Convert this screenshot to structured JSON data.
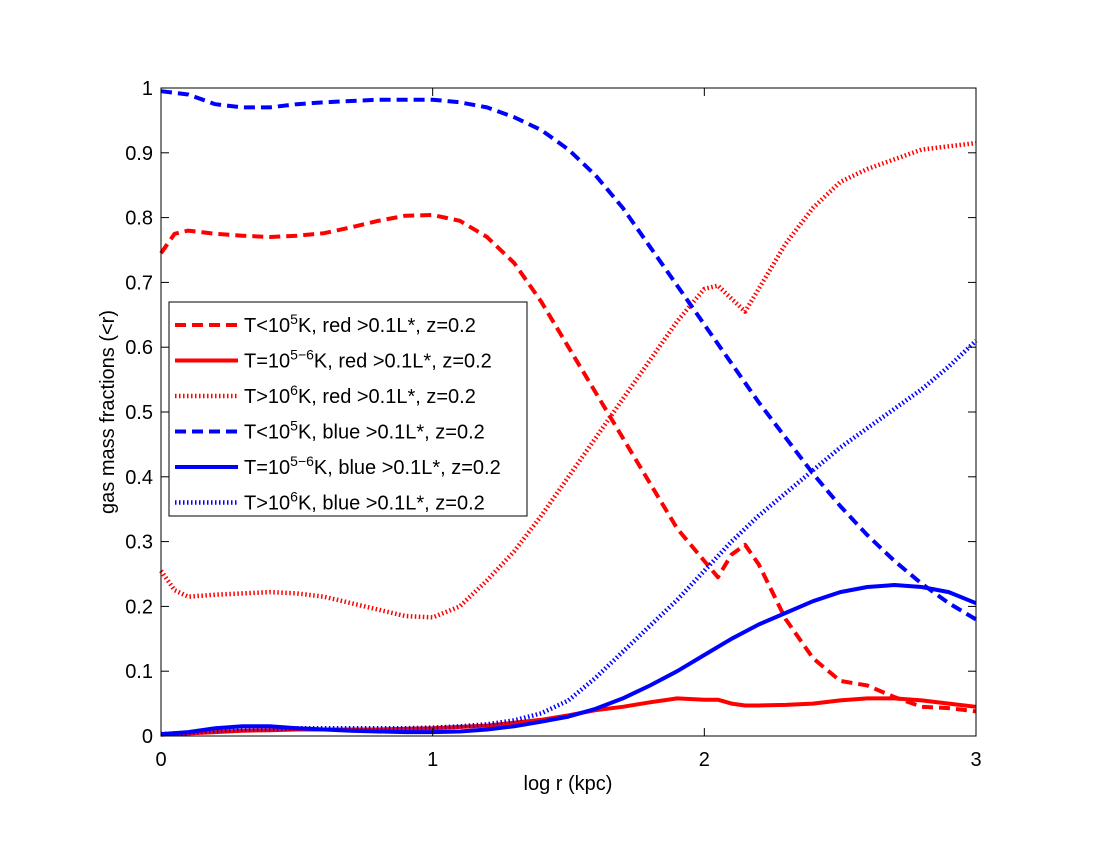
{
  "chart_data": {
    "type": "line",
    "title": "",
    "xlabel": "log r (kpc)",
    "ylabel": "gas mass fractions (<r)",
    "xlim": [
      0,
      3
    ],
    "ylim": [
      0,
      1
    ],
    "xticks": [
      0,
      1,
      2,
      3
    ],
    "xtick_labels": [
      "0",
      "1",
      "2",
      "3"
    ],
    "yticks": [
      0,
      0.1,
      0.2,
      0.3,
      0.4,
      0.5,
      0.6,
      0.7,
      0.8,
      0.9,
      1
    ],
    "ytick_labels": [
      "0",
      "0.1",
      "0.2",
      "0.3",
      "0.4",
      "0.5",
      "0.6",
      "0.7",
      "0.8",
      "0.9",
      "1"
    ],
    "grid": false,
    "legend_position": "center-left",
    "series": [
      {
        "name": "T<10^5K, red >0.1L*, z=0.2",
        "legend": {
          "pre": "T<10",
          "sup": "5",
          "post": "K, red >0.1L*, z=0.2"
        },
        "color": "#ff0000",
        "style": "dashed",
        "x": [
          0,
          0.05,
          0.1,
          0.2,
          0.3,
          0.4,
          0.5,
          0.6,
          0.7,
          0.8,
          0.9,
          1.0,
          1.1,
          1.2,
          1.3,
          1.4,
          1.5,
          1.6,
          1.7,
          1.8,
          1.9,
          2.0,
          2.05,
          2.1,
          2.15,
          2.2,
          2.3,
          2.4,
          2.5,
          2.6,
          2.7,
          2.8,
          2.9,
          3.0
        ],
        "y": [
          0.745,
          0.775,
          0.78,
          0.775,
          0.772,
          0.77,
          0.772,
          0.776,
          0.785,
          0.795,
          0.803,
          0.804,
          0.795,
          0.77,
          0.73,
          0.67,
          0.6,
          0.53,
          0.46,
          0.39,
          0.32,
          0.27,
          0.245,
          0.28,
          0.295,
          0.265,
          0.18,
          0.12,
          0.085,
          0.078,
          0.06,
          0.045,
          0.043,
          0.038
        ]
      },
      {
        "name": "T=10^5-6K, red >0.1L*, z=0.2",
        "legend": {
          "pre": "T=10",
          "sup": "5−6",
          "post": "K, red >0.1L*, z=0.2"
        },
        "color": "#ff0000",
        "style": "solid",
        "x": [
          0,
          0.1,
          0.2,
          0.3,
          0.4,
          0.5,
          0.6,
          0.8,
          1.0,
          1.2,
          1.4,
          1.5,
          1.6,
          1.7,
          1.8,
          1.9,
          2.0,
          2.05,
          2.1,
          2.15,
          2.2,
          2.3,
          2.4,
          2.5,
          2.6,
          2.7,
          2.8,
          2.9,
          3.0
        ],
        "y": [
          0.002,
          0.004,
          0.006,
          0.008,
          0.009,
          0.01,
          0.01,
          0.01,
          0.012,
          0.016,
          0.025,
          0.032,
          0.04,
          0.045,
          0.052,
          0.058,
          0.056,
          0.056,
          0.05,
          0.047,
          0.047,
          0.048,
          0.05,
          0.055,
          0.058,
          0.058,
          0.055,
          0.05,
          0.045
        ]
      },
      {
        "name": "T>10^6K, red >0.1L*, z=0.2",
        "legend": {
          "pre": "T>10",
          "sup": "6",
          "post": "K, red >0.1L*, z=0.2"
        },
        "color": "#ff0000",
        "style": "dotted",
        "x": [
          0,
          0.05,
          0.1,
          0.2,
          0.3,
          0.4,
          0.5,
          0.6,
          0.7,
          0.8,
          0.9,
          1.0,
          1.1,
          1.2,
          1.3,
          1.4,
          1.5,
          1.6,
          1.7,
          1.8,
          1.9,
          2.0,
          2.05,
          2.1,
          2.15,
          2.2,
          2.3,
          2.4,
          2.5,
          2.6,
          2.7,
          2.8,
          2.9,
          3.0
        ],
        "y": [
          0.255,
          0.225,
          0.215,
          0.218,
          0.22,
          0.222,
          0.22,
          0.215,
          0.205,
          0.195,
          0.185,
          0.183,
          0.2,
          0.24,
          0.285,
          0.34,
          0.4,
          0.46,
          0.52,
          0.58,
          0.64,
          0.69,
          0.695,
          0.675,
          0.655,
          0.69,
          0.76,
          0.815,
          0.855,
          0.875,
          0.89,
          0.905,
          0.91,
          0.915
        ]
      },
      {
        "name": "T<10^5K, blue >0.1L*, z=0.2",
        "legend": {
          "pre": "T<10",
          "sup": "5",
          "post": "K, blue >0.1L*, z=0.2"
        },
        "color": "#0000ff",
        "style": "dashed",
        "x": [
          0,
          0.1,
          0.2,
          0.3,
          0.4,
          0.5,
          0.6,
          0.7,
          0.8,
          0.9,
          1.0,
          1.1,
          1.2,
          1.3,
          1.4,
          1.5,
          1.6,
          1.7,
          1.8,
          1.9,
          2.0,
          2.1,
          2.2,
          2.3,
          2.4,
          2.5,
          2.6,
          2.7,
          2.8,
          2.9,
          3.0
        ],
        "y": [
          0.995,
          0.99,
          0.975,
          0.97,
          0.97,
          0.975,
          0.978,
          0.98,
          0.982,
          0.982,
          0.982,
          0.978,
          0.97,
          0.955,
          0.935,
          0.905,
          0.865,
          0.815,
          0.755,
          0.695,
          0.635,
          0.575,
          0.515,
          0.46,
          0.405,
          0.355,
          0.31,
          0.27,
          0.235,
          0.205,
          0.18
        ]
      },
      {
        "name": "T=10^5-6K, blue >0.1L*, z=0.2",
        "legend": {
          "pre": "T=10",
          "sup": "5−6",
          "post": "K, blue >0.1L*, z=0.2"
        },
        "color": "#0000ff",
        "style": "solid",
        "x": [
          0,
          0.1,
          0.2,
          0.3,
          0.4,
          0.5,
          0.6,
          0.7,
          0.8,
          0.9,
          1.0,
          1.1,
          1.2,
          1.3,
          1.4,
          1.5,
          1.6,
          1.7,
          1.8,
          1.9,
          2.0,
          2.1,
          2.2,
          2.3,
          2.4,
          2.5,
          2.6,
          2.7,
          2.8,
          2.9,
          3.0
        ],
        "y": [
          0.003,
          0.006,
          0.012,
          0.015,
          0.015,
          0.012,
          0.01,
          0.008,
          0.007,
          0.006,
          0.006,
          0.007,
          0.01,
          0.015,
          0.022,
          0.03,
          0.042,
          0.058,
          0.078,
          0.1,
          0.125,
          0.15,
          0.172,
          0.19,
          0.208,
          0.222,
          0.23,
          0.233,
          0.23,
          0.222,
          0.205
        ]
      },
      {
        "name": "T>10^6K, blue >0.1L*, z=0.2",
        "legend": {
          "pre": "T>10",
          "sup": "6",
          "post": "K, blue >0.1L*, z=0.2"
        },
        "color": "#0000ff",
        "style": "dotted",
        "x": [
          0,
          0.1,
          0.2,
          0.3,
          0.4,
          0.5,
          0.6,
          0.7,
          0.8,
          0.9,
          1.0,
          1.1,
          1.2,
          1.3,
          1.4,
          1.5,
          1.6,
          1.7,
          1.8,
          1.9,
          2.0,
          2.1,
          2.2,
          2.3,
          2.4,
          2.5,
          2.6,
          2.7,
          2.8,
          2.9,
          3.0
        ],
        "y": [
          0.003,
          0.005,
          0.008,
          0.01,
          0.011,
          0.012,
          0.012,
          0.012,
          0.012,
          0.012,
          0.013,
          0.015,
          0.018,
          0.024,
          0.035,
          0.055,
          0.09,
          0.13,
          0.17,
          0.21,
          0.255,
          0.3,
          0.34,
          0.375,
          0.41,
          0.445,
          0.475,
          0.505,
          0.535,
          0.57,
          0.61
        ]
      }
    ]
  }
}
